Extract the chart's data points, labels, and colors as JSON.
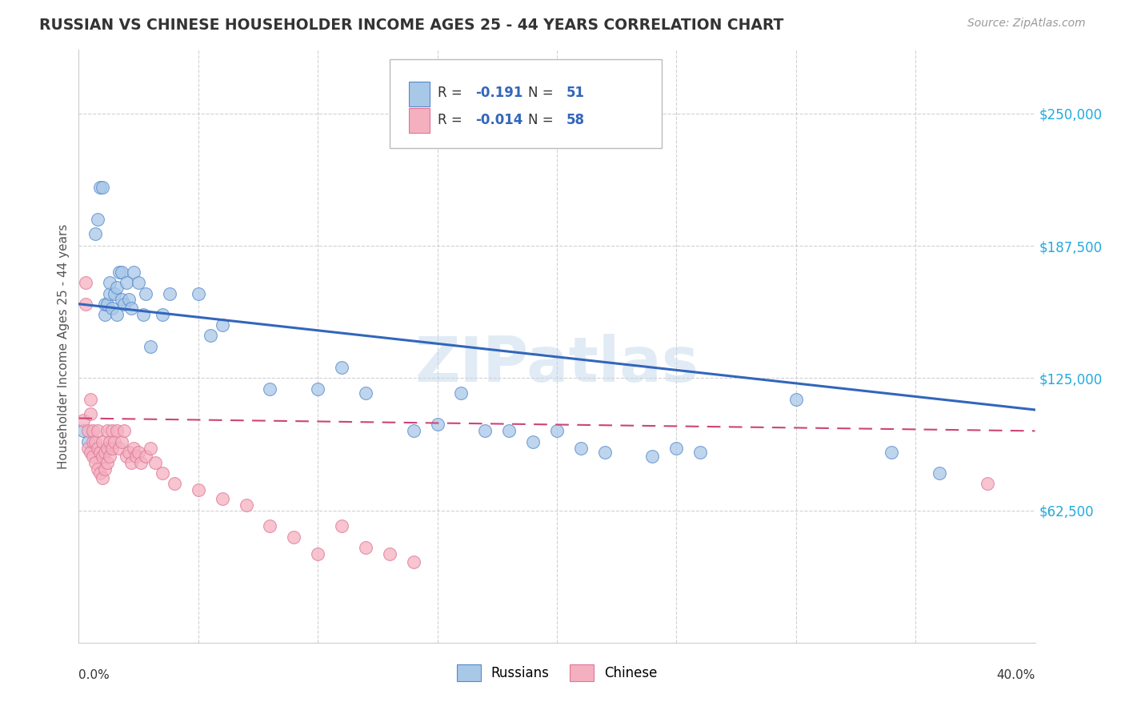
{
  "title": "RUSSIAN VS CHINESE HOUSEHOLDER INCOME AGES 25 - 44 YEARS CORRELATION CHART",
  "source": "Source: ZipAtlas.com",
  "ylabel": "Householder Income Ages 25 - 44 years",
  "yticks": [
    62500,
    125000,
    187500,
    250000
  ],
  "ytick_labels": [
    "$62,500",
    "$125,000",
    "$187,500",
    "$250,000"
  ],
  "xlim": [
    0.0,
    0.4
  ],
  "ylim": [
    0,
    280000
  ],
  "russians_R": "-0.191",
  "russians_N": "51",
  "chinese_R": "-0.014",
  "chinese_N": "58",
  "russians_color": "#a8c8e8",
  "chinese_color": "#f5b0c0",
  "russians_edge_color": "#5588cc",
  "chinese_edge_color": "#dd7799",
  "russians_line_color": "#3366bb",
  "chinese_line_color": "#cc4477",
  "background_color": "#ffffff",
  "grid_color": "#cccccc",
  "watermark": "ZIPatlas",
  "russians_x": [
    0.002,
    0.004,
    0.007,
    0.008,
    0.009,
    0.01,
    0.011,
    0.011,
    0.012,
    0.013,
    0.013,
    0.014,
    0.015,
    0.016,
    0.016,
    0.017,
    0.018,
    0.018,
    0.019,
    0.02,
    0.021,
    0.022,
    0.023,
    0.025,
    0.027,
    0.028,
    0.03,
    0.035,
    0.038,
    0.05,
    0.055,
    0.06,
    0.08,
    0.1,
    0.11,
    0.12,
    0.14,
    0.15,
    0.16,
    0.17,
    0.18,
    0.19,
    0.2,
    0.21,
    0.22,
    0.24,
    0.25,
    0.26,
    0.3,
    0.34,
    0.36
  ],
  "russians_y": [
    100000,
    95000,
    193000,
    200000,
    215000,
    215000,
    155000,
    160000,
    160000,
    165000,
    170000,
    158000,
    165000,
    155000,
    168000,
    175000,
    175000,
    162000,
    160000,
    170000,
    162000,
    158000,
    175000,
    170000,
    155000,
    165000,
    140000,
    155000,
    165000,
    165000,
    145000,
    150000,
    120000,
    120000,
    130000,
    118000,
    100000,
    103000,
    118000,
    100000,
    100000,
    95000,
    100000,
    92000,
    90000,
    88000,
    92000,
    90000,
    115000,
    90000,
    80000
  ],
  "chinese_x": [
    0.002,
    0.003,
    0.003,
    0.004,
    0.004,
    0.005,
    0.005,
    0.005,
    0.006,
    0.006,
    0.006,
    0.007,
    0.007,
    0.008,
    0.008,
    0.008,
    0.009,
    0.009,
    0.01,
    0.01,
    0.01,
    0.011,
    0.011,
    0.012,
    0.012,
    0.012,
    0.013,
    0.013,
    0.014,
    0.014,
    0.015,
    0.016,
    0.017,
    0.018,
    0.019,
    0.02,
    0.021,
    0.022,
    0.023,
    0.024,
    0.025,
    0.026,
    0.028,
    0.03,
    0.032,
    0.035,
    0.04,
    0.05,
    0.06,
    0.07,
    0.08,
    0.09,
    0.1,
    0.11,
    0.12,
    0.13,
    0.14,
    0.38
  ],
  "chinese_y": [
    105000,
    170000,
    160000,
    100000,
    92000,
    115000,
    108000,
    90000,
    95000,
    88000,
    100000,
    95000,
    85000,
    100000,
    92000,
    82000,
    90000,
    80000,
    95000,
    88000,
    78000,
    90000,
    82000,
    100000,
    92000,
    85000,
    95000,
    88000,
    100000,
    92000,
    95000,
    100000,
    92000,
    95000,
    100000,
    88000,
    90000,
    85000,
    92000,
    88000,
    90000,
    85000,
    88000,
    92000,
    85000,
    80000,
    75000,
    72000,
    68000,
    65000,
    55000,
    50000,
    42000,
    55000,
    45000,
    42000,
    38000,
    75000
  ]
}
